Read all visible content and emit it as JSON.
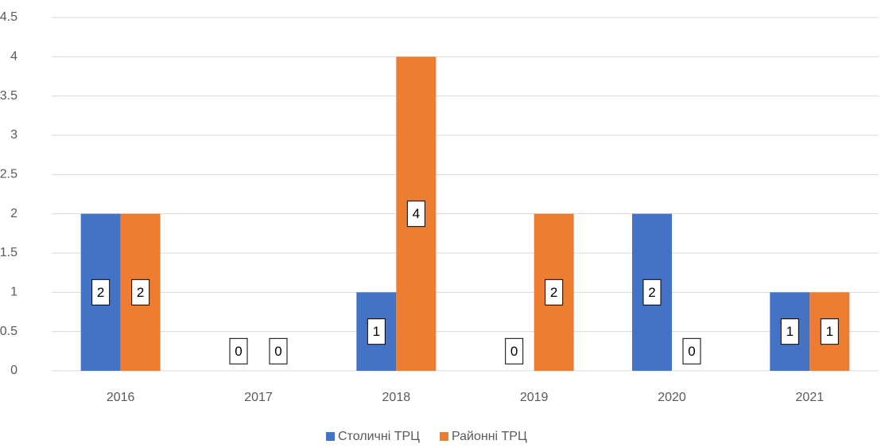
{
  "chart_data": {
    "type": "bar",
    "categories": [
      "2016",
      "2017",
      "2018",
      "2019",
      "2020",
      "2021"
    ],
    "series": [
      {
        "name": "Столичні ТРЦ",
        "color": "#4472c4",
        "values": [
          2,
          0,
          1,
          0,
          2,
          1
        ]
      },
      {
        "name": "Районні ТРЦ",
        "color": "#ed7d31",
        "values": [
          2,
          0,
          4,
          2,
          0,
          1
        ]
      }
    ],
    "ylim": [
      0,
      4.5
    ],
    "yticks": [
      0,
      0.5,
      1,
      1.5,
      2,
      2.5,
      3,
      3.5,
      4,
      4.5
    ],
    "grid": true,
    "legend": "bottom"
  }
}
